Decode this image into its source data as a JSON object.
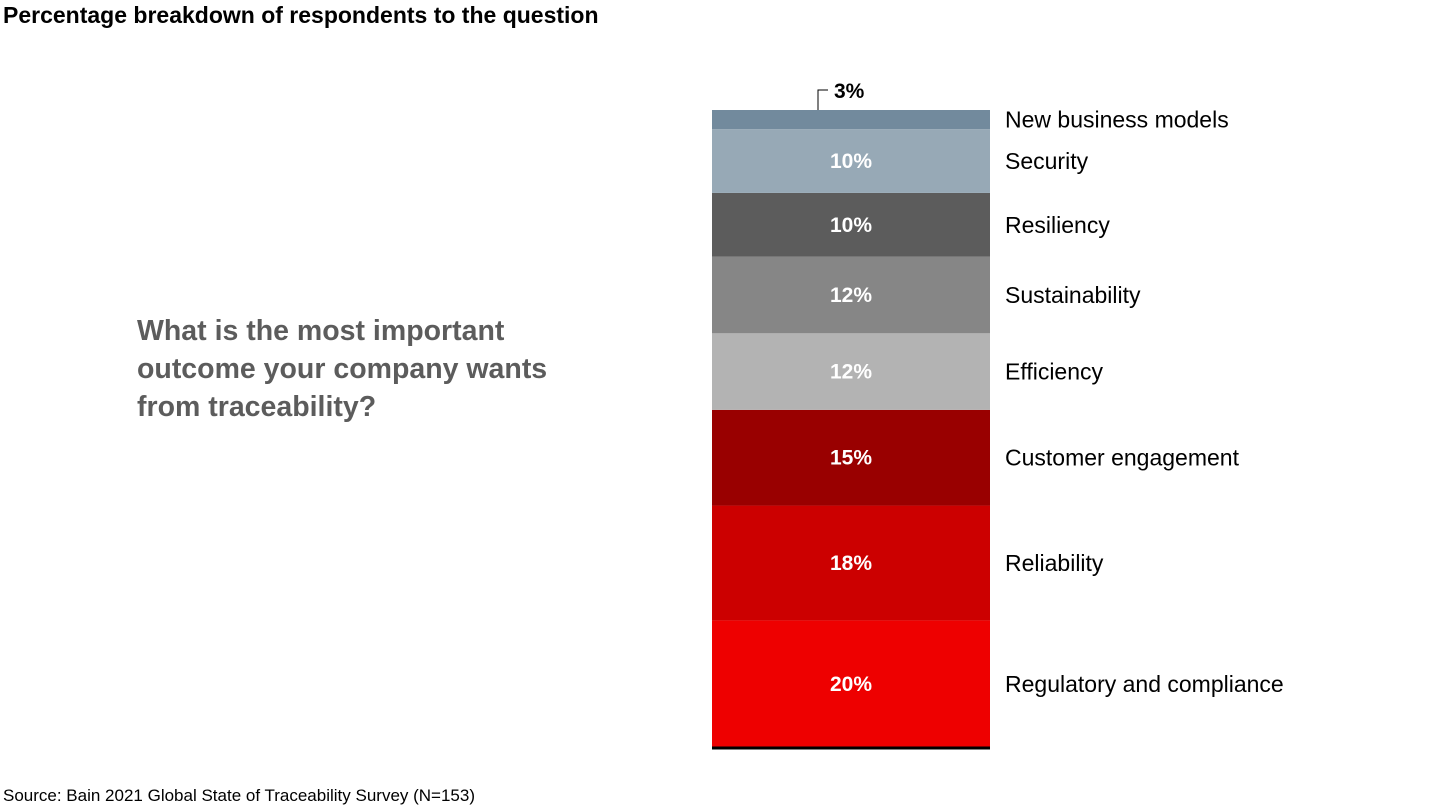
{
  "title": "Percentage breakdown of respondents to the question",
  "question": "What is the most important outcome your company wants from traceability?",
  "source": "Source: Bain 2021 Global State of Traceability Survey (N=153)",
  "chart_data": {
    "type": "bar",
    "stacked": true,
    "orientation": "vertical",
    "unit": "%",
    "ylim": [
      0,
      100
    ],
    "grid": false,
    "segments_bottom_to_top": [
      {
        "category": "Regulatory and compliance",
        "value": 20,
        "label": "20%",
        "color": "#ee0000"
      },
      {
        "category": "Reliability",
        "value": 18,
        "label": "18%",
        "color": "#cc0000"
      },
      {
        "category": "Customer engagement",
        "value": 15,
        "label": "15%",
        "color": "#990000"
      },
      {
        "category": "Efficiency",
        "value": 12,
        "label": "12%",
        "color": "#b3b3b3"
      },
      {
        "category": "Sustainability",
        "value": 12,
        "label": "12%",
        "color": "#868686"
      },
      {
        "category": "Resiliency",
        "value": 10,
        "label": "10%",
        "color": "#5c5c5c"
      },
      {
        "category": "Security",
        "value": 10,
        "label": "10%",
        "color": "#97a9b6"
      },
      {
        "category": "New business models",
        "value": 3,
        "label": "3%",
        "color": "#728a9d"
      }
    ]
  }
}
